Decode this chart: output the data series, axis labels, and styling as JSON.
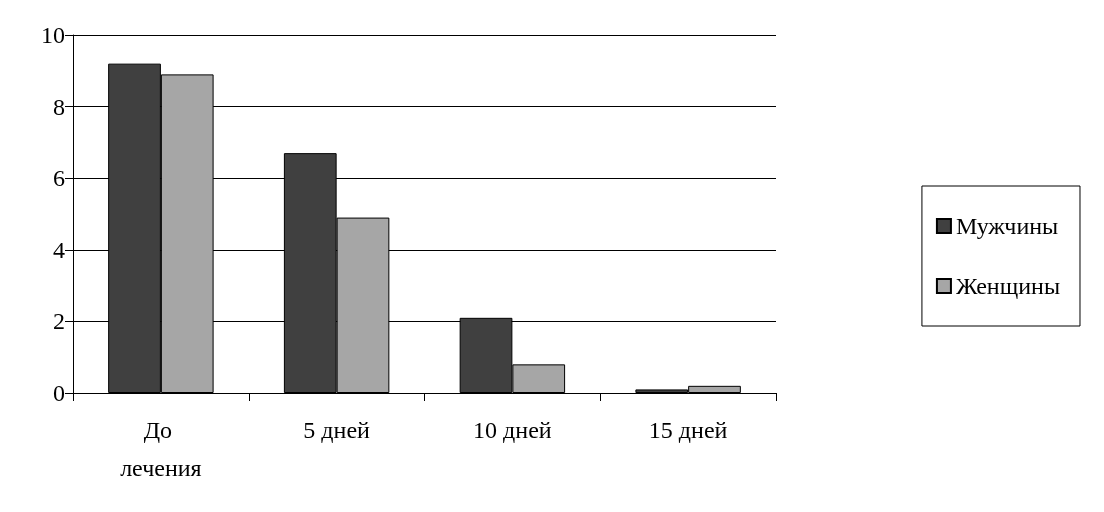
{
  "chart_data": {
    "type": "bar",
    "categories": [
      "До лечения",
      "5 дней",
      "10 дней",
      "15 дней"
    ],
    "series": [
      {
        "name": "Мужчины",
        "color": "#404040",
        "values": [
          9.2,
          6.7,
          2.1,
          0.1
        ]
      },
      {
        "name": "Женщины",
        "color": "#a6a6a6",
        "values": [
          8.9,
          4.9,
          0.8,
          0.2
        ]
      }
    ],
    "ylim": [
      0,
      10
    ],
    "yticks": [
      0,
      2,
      4,
      6,
      8,
      10
    ],
    "grid": "y",
    "legend": "right"
  }
}
